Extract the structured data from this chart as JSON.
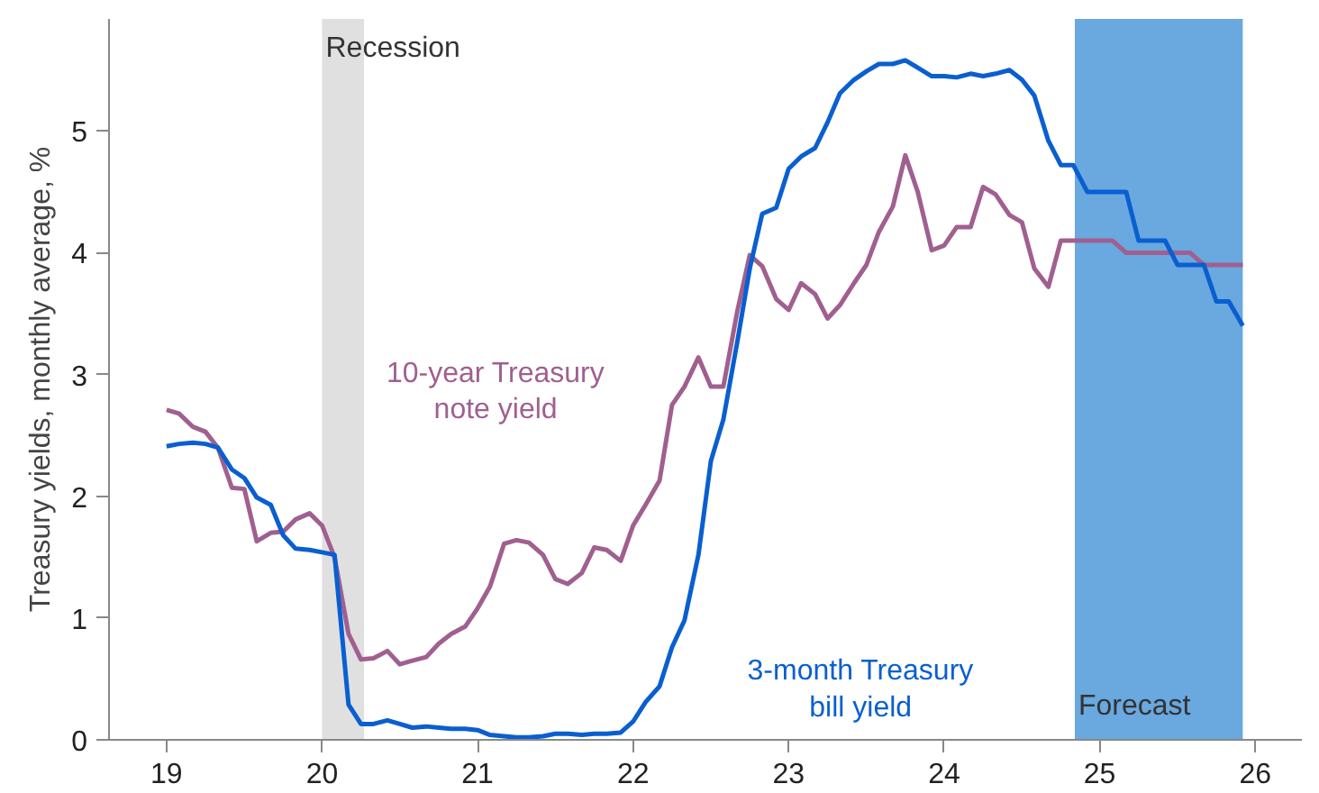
{
  "chart_data": {
    "type": "line",
    "ylabel": "Treasury yields, monthly average, %",
    "xlim": [
      18.63,
      26.3
    ],
    "ylim": [
      0,
      5.92
    ],
    "xticks": [
      19,
      20,
      21,
      22,
      23,
      24,
      25,
      26
    ],
    "yticks": [
      0,
      1,
      2,
      3,
      4,
      5
    ],
    "grid": false,
    "legend": false,
    "marker": "none",
    "line_style": "solid",
    "bands": [
      {
        "axis": "x",
        "from": 20.0,
        "to": 20.27,
        "label": "Recession",
        "color": "#e0e0e0"
      },
      {
        "axis": "x",
        "from": 24.84,
        "to": 25.92,
        "label": "Forecast",
        "color": "#6aa8e0"
      }
    ],
    "series": [
      {
        "name": "10-year Treasury\nnote yield",
        "color": "#a0608f",
        "x": [
          19.0,
          19.08,
          19.17,
          19.25,
          19.33,
          19.42,
          19.5,
          19.58,
          19.67,
          19.75,
          19.83,
          19.92,
          20.0,
          20.08,
          20.17,
          20.25,
          20.33,
          20.42,
          20.5,
          20.58,
          20.67,
          20.75,
          20.83,
          20.92,
          21.0,
          21.08,
          21.17,
          21.25,
          21.33,
          21.42,
          21.5,
          21.58,
          21.67,
          21.75,
          21.83,
          21.92,
          22.0,
          22.08,
          22.17,
          22.25,
          22.33,
          22.42,
          22.5,
          22.58,
          22.67,
          22.75,
          22.83,
          22.92,
          23.0,
          23.08,
          23.17,
          23.25,
          23.33,
          23.42,
          23.5,
          23.58,
          23.67,
          23.75,
          23.83,
          23.92,
          24.0,
          24.08,
          24.17,
          24.25,
          24.33,
          24.42,
          24.5,
          24.58,
          24.67,
          24.75,
          25.08,
          25.17,
          25.58,
          25.67,
          25.92
        ],
        "values": [
          2.71,
          2.68,
          2.57,
          2.53,
          2.4,
          2.07,
          2.06,
          1.63,
          1.7,
          1.71,
          1.81,
          1.86,
          1.76,
          1.5,
          0.87,
          0.66,
          0.67,
          0.73,
          0.62,
          0.65,
          0.68,
          0.79,
          0.87,
          0.93,
          1.08,
          1.26,
          1.61,
          1.64,
          1.62,
          1.52,
          1.32,
          1.28,
          1.37,
          1.58,
          1.56,
          1.47,
          1.76,
          1.93,
          2.13,
          2.75,
          2.9,
          3.14,
          2.9,
          2.9,
          3.52,
          3.98,
          3.89,
          3.62,
          3.53,
          3.75,
          3.66,
          3.46,
          3.57,
          3.75,
          3.9,
          4.17,
          4.38,
          4.8,
          4.5,
          4.02,
          4.06,
          4.21,
          4.21,
          4.54,
          4.48,
          4.31,
          4.25,
          3.87,
          3.72,
          4.1,
          4.1,
          4.0,
          4.0,
          3.9,
          3.9
        ]
      },
      {
        "name": "3-month Treasury\nbill yield",
        "color": "#0a5fd0",
        "x": [
          19.0,
          19.08,
          19.17,
          19.25,
          19.33,
          19.42,
          19.5,
          19.58,
          19.67,
          19.75,
          19.83,
          19.92,
          20.0,
          20.08,
          20.17,
          20.25,
          20.33,
          20.42,
          20.5,
          20.58,
          20.67,
          20.75,
          20.83,
          20.92,
          21.0,
          21.08,
          21.17,
          21.25,
          21.33,
          21.42,
          21.5,
          21.58,
          21.67,
          21.75,
          21.83,
          21.92,
          22.0,
          22.08,
          22.17,
          22.25,
          22.33,
          22.42,
          22.5,
          22.58,
          22.67,
          22.75,
          22.83,
          22.92,
          23.0,
          23.08,
          23.17,
          23.25,
          23.33,
          23.42,
          23.5,
          23.58,
          23.67,
          23.75,
          23.83,
          23.92,
          24.0,
          24.08,
          24.17,
          24.25,
          24.33,
          24.42,
          24.5,
          24.58,
          24.67,
          24.75,
          24.83,
          24.92,
          25.17,
          25.25,
          25.42,
          25.5,
          25.67,
          25.75,
          25.83,
          25.92
        ],
        "values": [
          2.41,
          2.43,
          2.44,
          2.43,
          2.4,
          2.22,
          2.15,
          1.99,
          1.93,
          1.68,
          1.57,
          1.56,
          1.54,
          1.52,
          0.29,
          0.13,
          0.13,
          0.16,
          0.13,
          0.1,
          0.11,
          0.1,
          0.09,
          0.09,
          0.08,
          0.04,
          0.03,
          0.02,
          0.02,
          0.03,
          0.05,
          0.05,
          0.04,
          0.05,
          0.05,
          0.06,
          0.15,
          0.31,
          0.44,
          0.76,
          0.98,
          1.52,
          2.29,
          2.63,
          3.27,
          3.87,
          4.32,
          4.37,
          4.69,
          4.79,
          4.86,
          5.07,
          5.31,
          5.42,
          5.49,
          5.55,
          5.55,
          5.58,
          5.52,
          5.45,
          5.45,
          5.44,
          5.47,
          5.45,
          5.47,
          5.5,
          5.42,
          5.29,
          4.92,
          4.72,
          4.72,
          4.5,
          4.5,
          4.1,
          4.1,
          3.9,
          3.9,
          3.6,
          3.6,
          3.4
        ]
      }
    ]
  }
}
